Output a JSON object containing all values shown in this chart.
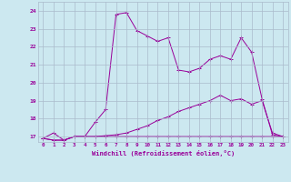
{
  "xlabel": "Windchill (Refroidissement éolien,°C)",
  "bg_color": "#cce8f0",
  "line_color": "#990099",
  "grid_color": "#aabbcc",
  "xlim": [
    -0.5,
    23.5
  ],
  "ylim": [
    16.7,
    24.5
  ],
  "yticks": [
    17,
    18,
    19,
    20,
    21,
    22,
    23,
    24
  ],
  "xticks": [
    0,
    1,
    2,
    3,
    4,
    5,
    6,
    7,
    8,
    9,
    10,
    11,
    12,
    13,
    14,
    15,
    16,
    17,
    18,
    19,
    20,
    21,
    22,
    23
  ],
  "line1_y": [
    16.9,
    17.2,
    16.8,
    17.0,
    17.0,
    17.8,
    18.5,
    23.8,
    23.9,
    22.9,
    22.6,
    22.3,
    22.5,
    20.7,
    20.6,
    20.8,
    21.3,
    21.5,
    21.3,
    22.5,
    21.7,
    19.1,
    17.1,
    17.0
  ],
  "line2_y": [
    16.9,
    16.8,
    16.8,
    17.0,
    17.0,
    17.0,
    17.05,
    17.1,
    17.2,
    17.4,
    17.6,
    17.9,
    18.1,
    18.4,
    18.6,
    18.8,
    19.0,
    19.3,
    19.0,
    19.1,
    18.8,
    19.0,
    17.2,
    17.0
  ],
  "line3_y": [
    16.9,
    16.8,
    16.8,
    17.0,
    17.0,
    17.0,
    17.0,
    17.0,
    17.0,
    17.0,
    17.0,
    17.0,
    17.0,
    17.0,
    17.0,
    17.0,
    17.0,
    17.0,
    17.0,
    17.0,
    17.0,
    17.0,
    17.0,
    17.0
  ]
}
